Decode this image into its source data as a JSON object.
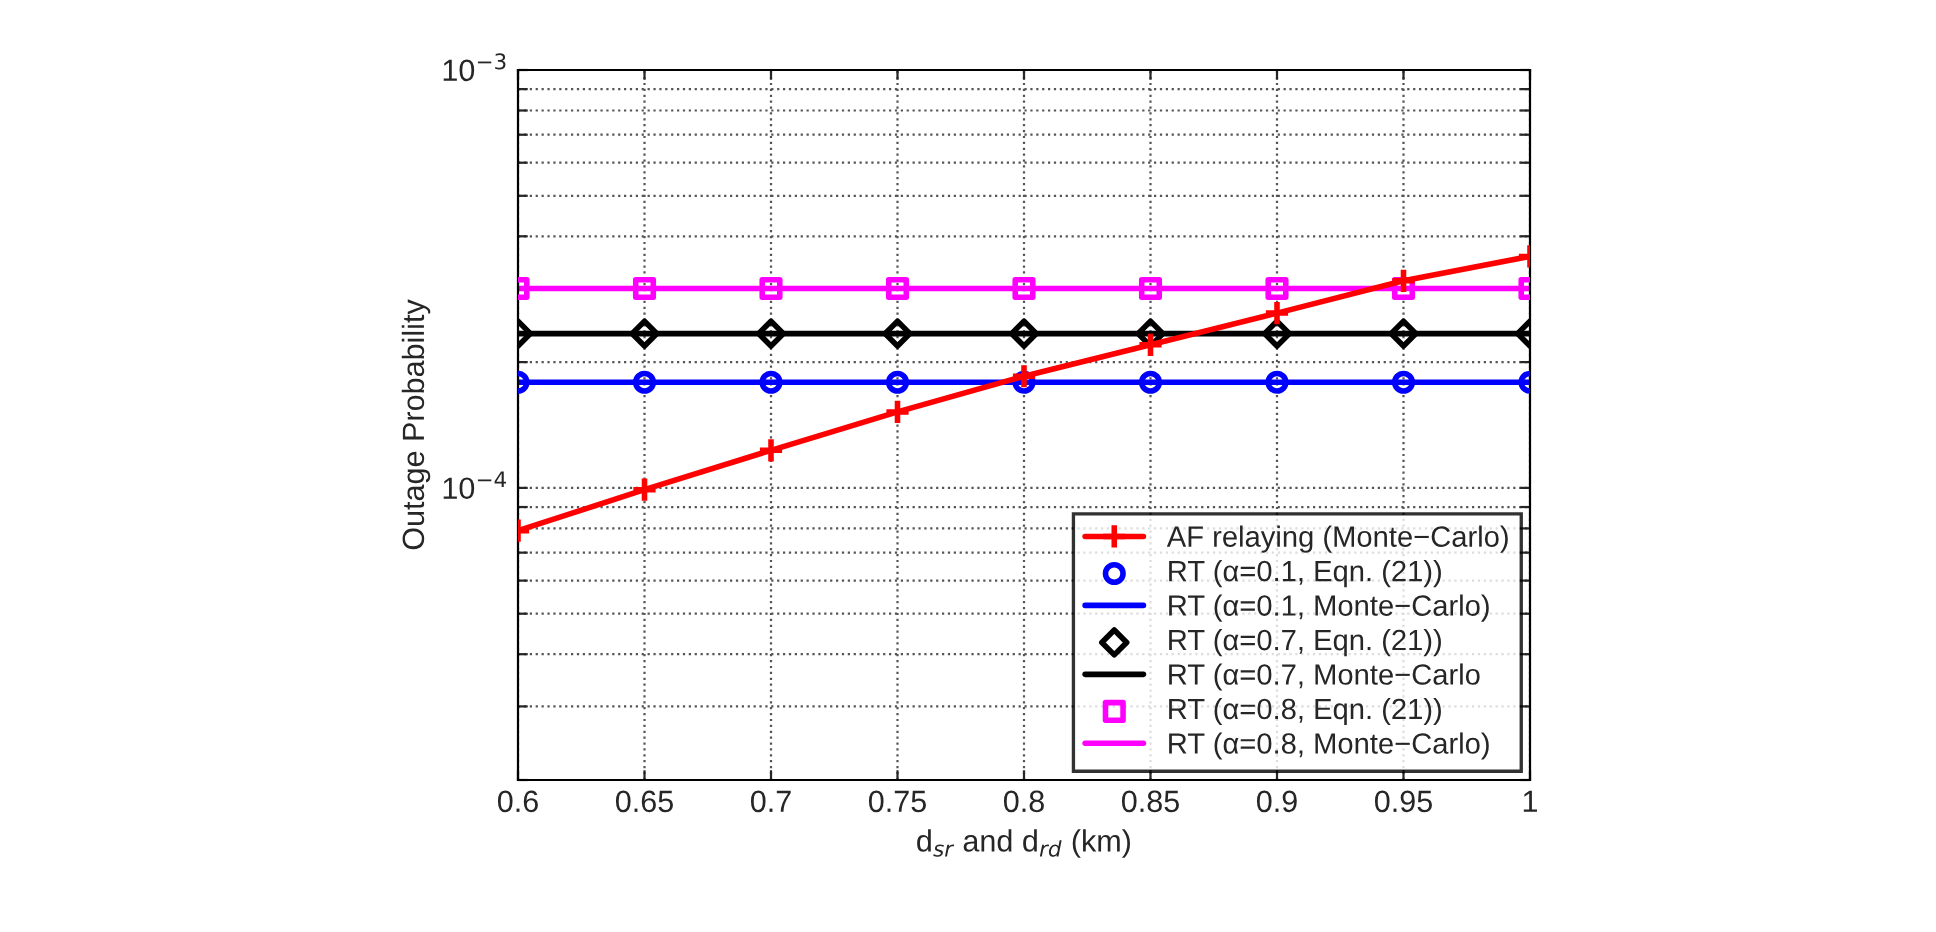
{
  "chart_data": {
    "type": "line",
    "xlabel": "d$_{sr}$ and d$_{rd}$ (km)",
    "ylabel": "Outage Probability",
    "x": [
      0.6,
      0.65,
      0.7,
      0.75,
      0.8,
      0.85,
      0.9,
      0.95,
      1
    ],
    "series": [
      {
        "name": "AF relaying (Monte−Carlo)",
        "color": "#ff0000",
        "marker": "cross",
        "values": [
          7.9e-05,
          9.9e-05,
          0.000123,
          0.000152,
          0.000185,
          0.00022,
          0.000262,
          0.000313,
          0.000358
        ]
      },
      {
        "name": "RT (α=0.1, Eqn. (21))",
        "type": "scatter",
        "color": "#0000ff",
        "marker": "circle",
        "values": [
          0.000179,
          0.000179,
          0.000179,
          0.000179,
          0.000179,
          0.000179,
          0.000179,
          0.000179,
          0.000179
        ]
      },
      {
        "name": "RT (α=0.1, Monte−Carlo)",
        "color": "#0000ff",
        "values": [
          0.000179,
          0.000179,
          0.000179,
          0.000179,
          0.000179,
          0.000179,
          0.000179,
          0.000179,
          0.000179
        ]
      },
      {
        "name": "RT (α=0.7, Eqn. (21))",
        "type": "scatter",
        "color": "#000000",
        "marker": "diamond",
        "values": [
          0.000234,
          0.000234,
          0.000234,
          0.000234,
          0.000234,
          0.000234,
          0.000234,
          0.000234,
          0.000234
        ]
      },
      {
        "name": "RT (α=0.7, Monte−Carlo",
        "color": "#000000",
        "values": [
          0.000234,
          0.000234,
          0.000234,
          0.000234,
          0.000234,
          0.000234,
          0.000234,
          0.000234,
          0.000234
        ]
      },
      {
        "name": "RT (α=0.8, Eqn. (21))",
        "type": "scatter",
        "color": "#ff00ff",
        "marker": "square",
        "values": [
          0.0003,
          0.0003,
          0.0003,
          0.0003,
          0.0003,
          0.0003,
          0.0003,
          0.0003,
          0.0003
        ]
      },
      {
        "name": "RT (α=0.8, Monte−Carlo)",
        "color": "#ff00ff",
        "values": [
          0.0003,
          0.0003,
          0.0003,
          0.0003,
          0.0003,
          0.0003,
          0.0003,
          0.0003,
          0.0003
        ]
      }
    ],
    "log": "y",
    "xlim": [
      0.6,
      1
    ],
    "xticks": [
      0.6,
      0.65,
      0.7,
      0.75,
      0.8,
      0.85,
      0.9,
      0.95,
      1
    ],
    "ylim": [
      2e-05,
      0.001
    ],
    "yticks": [
      {
        "value": 2e-05,
        "label": null
      },
      {
        "value": 3e-05,
        "label": null
      },
      {
        "value": 4e-05,
        "label": null
      },
      {
        "value": 5e-05,
        "label": null
      },
      {
        "value": 6e-05,
        "label": null
      },
      {
        "value": 7e-05,
        "label": null
      },
      {
        "value": 8e-05,
        "label": null
      },
      {
        "value": 9e-05,
        "label": null
      },
      {
        "value": 0.0001,
        "label": "10$^{−4}$"
      },
      {
        "value": 0.0002,
        "label": null
      },
      {
        "value": 0.0003,
        "label": null
      },
      {
        "value": 0.0004,
        "label": null
      },
      {
        "value": 0.0005,
        "label": null
      },
      {
        "value": 0.0006,
        "label": null
      },
      {
        "value": 0.0007,
        "label": null
      },
      {
        "value": 0.0008,
        "label": null
      },
      {
        "value": 0.0009,
        "label": null
      },
      {
        "value": 0.001,
        "label": "10$^{−3}$"
      }
    ],
    "grid": true,
    "legend": "bottom right"
  }
}
